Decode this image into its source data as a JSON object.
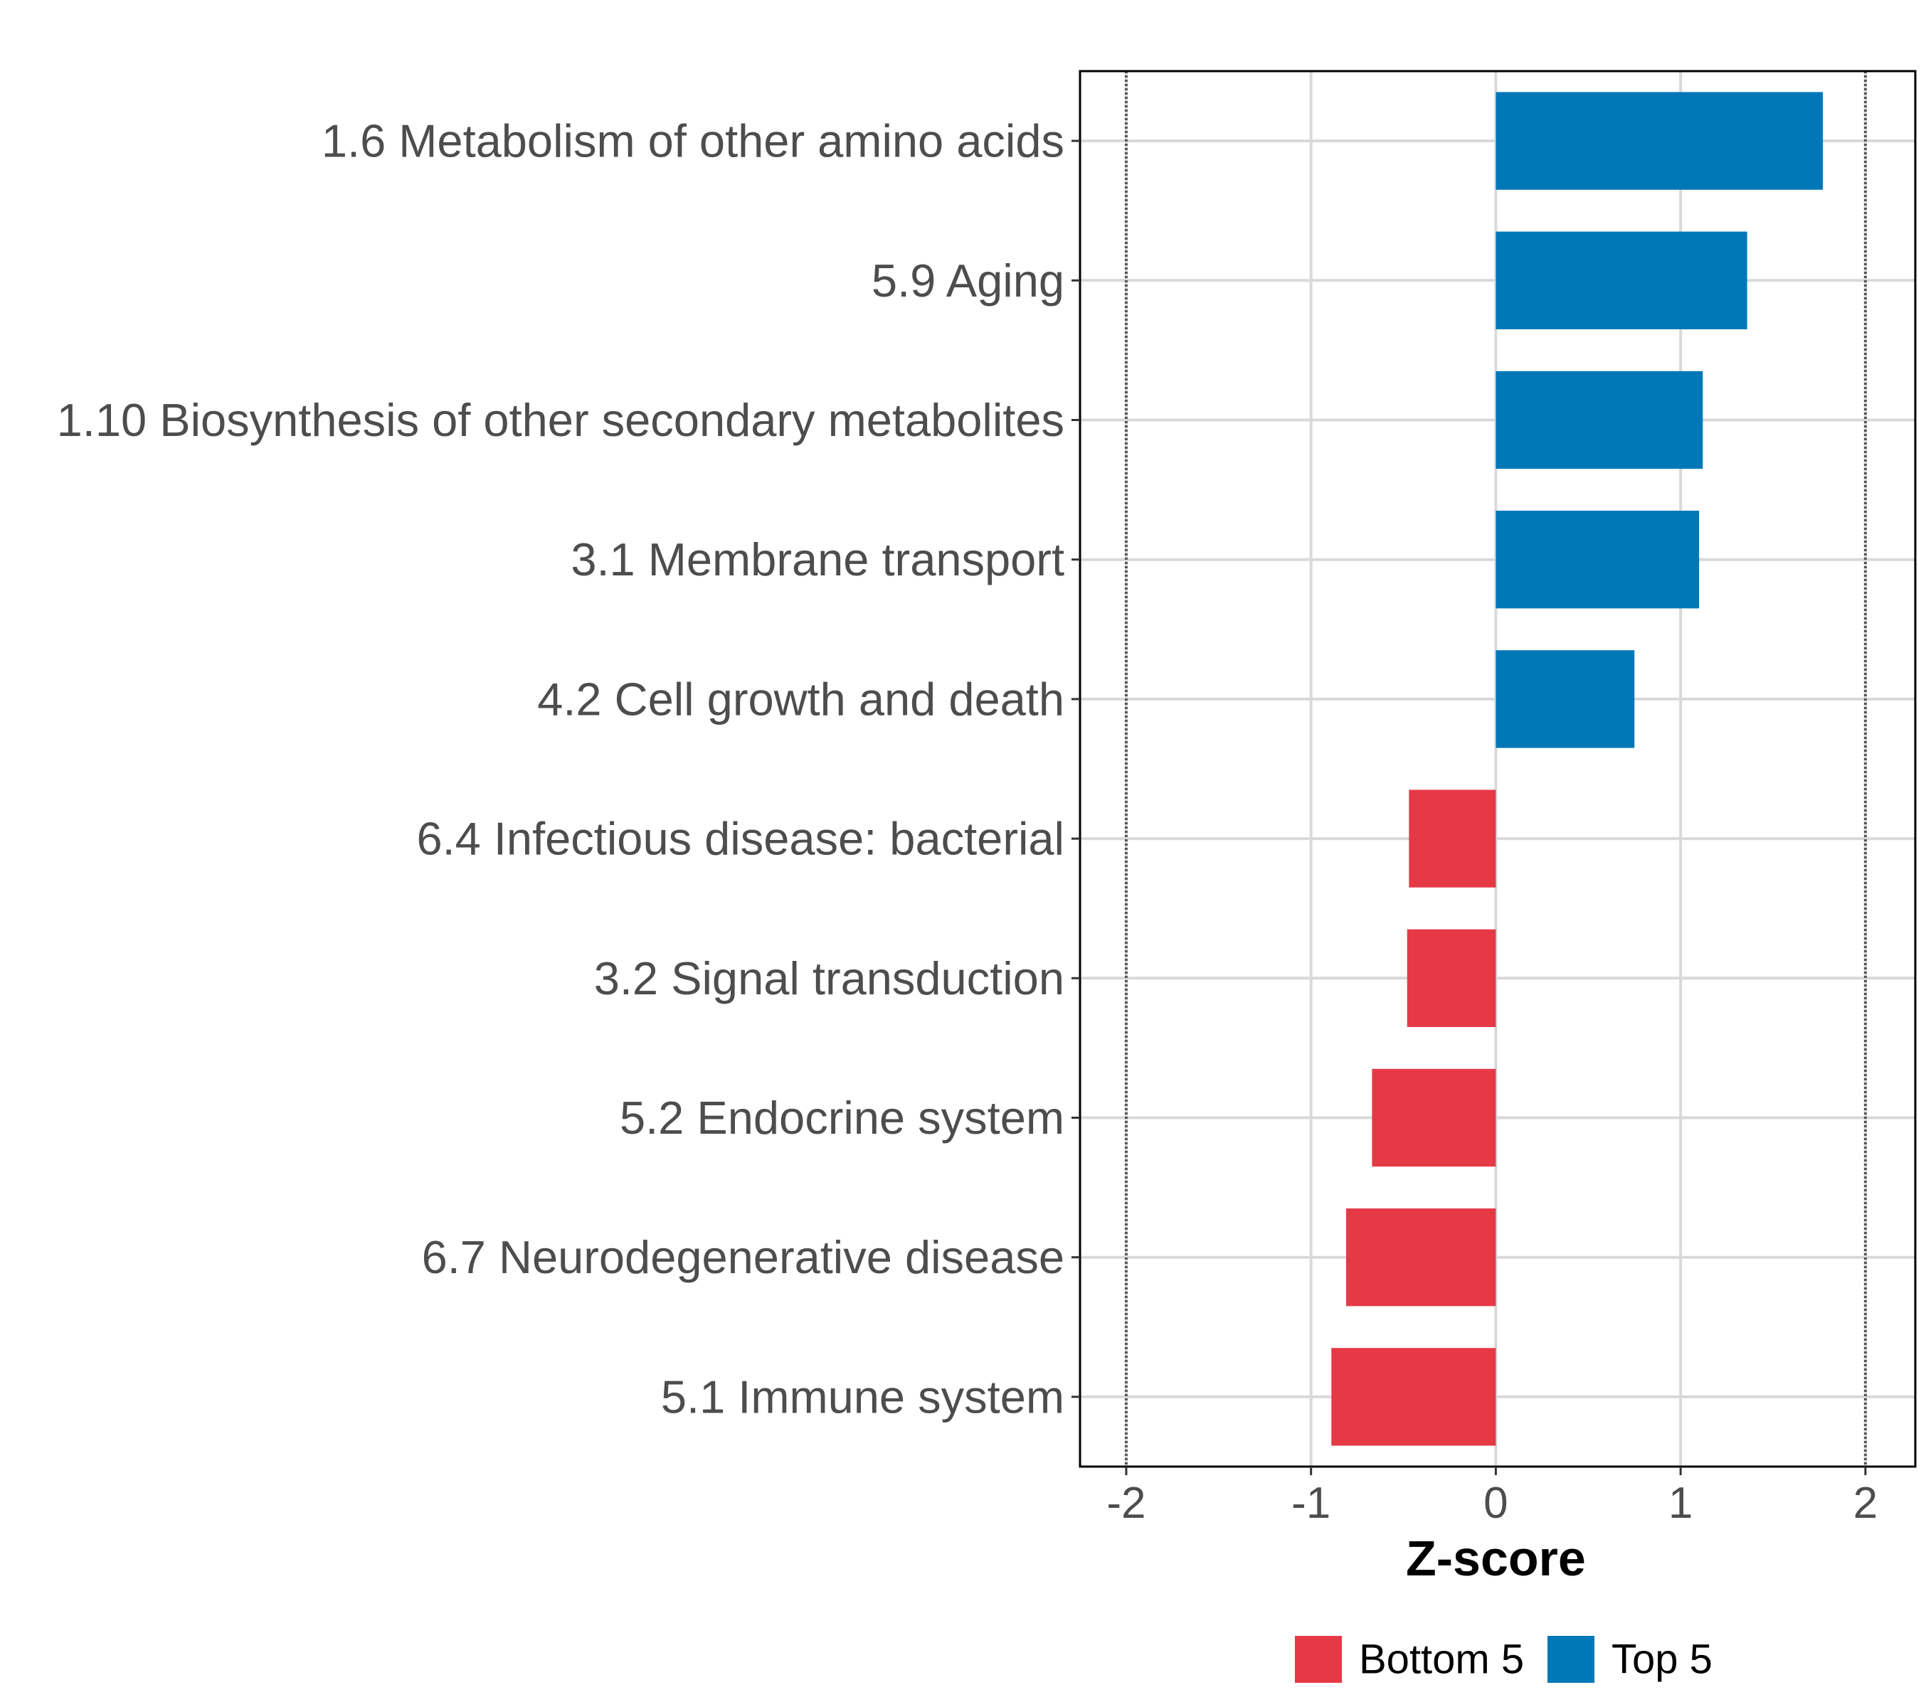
{
  "chart_data": {
    "type": "bar",
    "orientation": "horizontal",
    "title": "",
    "xlabel": "Z-score",
    "ylabel": "",
    "xlim": [
      -2.25,
      2.27
    ],
    "x_ticks": [
      -2,
      -1,
      0,
      1,
      2
    ],
    "x_tick_labels": [
      "-2",
      "-1",
      "0",
      "1",
      "2"
    ],
    "reference_lines": [
      -2,
      2
    ],
    "grid": true,
    "categories": [
      "1.6 Metabolism of other amino acids",
      "5.9 Aging",
      "1.10 Biosynthesis of other secondary metabolites",
      "3.1 Membrane transport",
      "4.2 Cell growth and death",
      "6.4 Infectious disease: bacterial",
      "3.2 Signal transduction",
      "5.2 Endocrine system",
      "6.7 Neurodegenerative disease",
      "5.1 Immune system"
    ],
    "values": [
      1.77,
      1.36,
      1.12,
      1.1,
      0.75,
      -0.47,
      -0.48,
      -0.67,
      -0.81,
      -0.89
    ],
    "groups": [
      "Top 5",
      "Top 5",
      "Top 5",
      "Top 5",
      "Top 5",
      "Bottom 5",
      "Bottom 5",
      "Bottom 5",
      "Bottom 5",
      "Bottom 5"
    ],
    "legend": [
      {
        "name": "Bottom 5",
        "color": "#e63946"
      },
      {
        "name": "Top 5",
        "color": "#0077b6"
      }
    ],
    "legend_position": "bottom",
    "colors": {
      "Top 5": "#0077b6",
      "Bottom 5": "#e63946",
      "grid": "#d9d9d9",
      "reference_line": "#555555",
      "panel_border": "#000000"
    }
  }
}
